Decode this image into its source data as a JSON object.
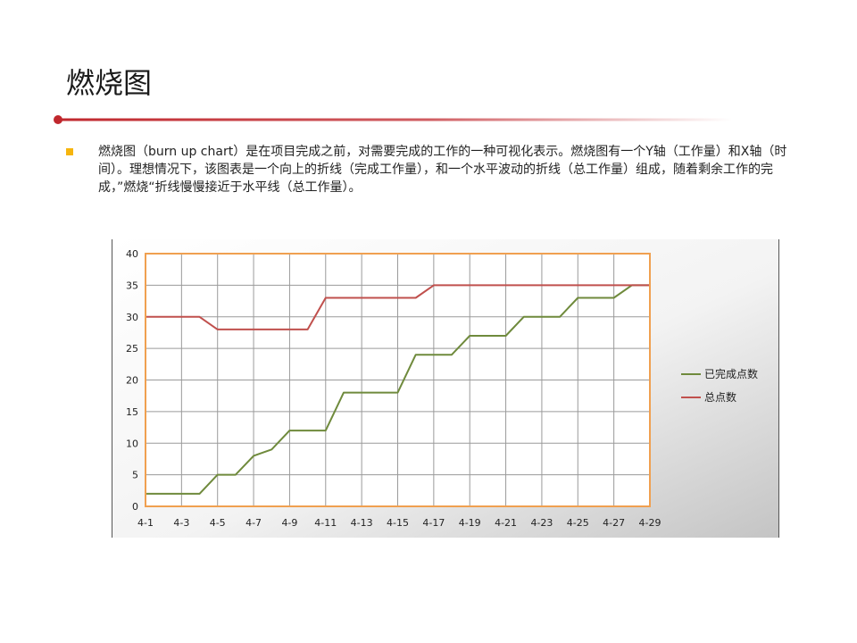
{
  "slide": {
    "title": "燃烧图",
    "bullet": "燃烧图（burn up chart）是在项目完成之前，对需要完成的工作的一种可视化表示。燃烧图有一个Y轴（工作量）和X轴（时间）。理想情况下，该图表是一个向上的折线（完成工作量），和一个水平波动的折线（总工作量）组成，随着剩余工作的完成，”燃烧“折线慢慢接近于水平线（总工作量）。"
  },
  "colors": {
    "accent_red": "#c0272d",
    "bullet_yellow": "#f6b50e",
    "plot_border": "#f0a050",
    "completed_line": "#6f8a3c",
    "total_line": "#c0504d"
  },
  "chart_data": {
    "type": "line",
    "title": "",
    "xlabel": "",
    "ylabel": "",
    "ylim": [
      0,
      40
    ],
    "yticks": [
      "0",
      "5",
      "10",
      "15",
      "20",
      "25",
      "30",
      "35",
      "40"
    ],
    "xtick_labels": [
      "4-1",
      "4-3",
      "4-5",
      "4-7",
      "4-9",
      "4-11",
      "4-13",
      "4-15",
      "4-17",
      "4-19",
      "4-21",
      "4-23",
      "4-25",
      "4-27",
      "4-29"
    ],
    "x": [
      "4-1",
      "4-2",
      "4-3",
      "4-4",
      "4-5",
      "4-6",
      "4-7",
      "4-8",
      "4-9",
      "4-10",
      "4-11",
      "4-12",
      "4-13",
      "4-14",
      "4-15",
      "4-16",
      "4-17",
      "4-18",
      "4-19",
      "4-20",
      "4-21",
      "4-22",
      "4-23",
      "4-24",
      "4-25",
      "4-26",
      "4-27",
      "4-28",
      "4-29"
    ],
    "grid": true,
    "legend_position": "right",
    "series": [
      {
        "name": "已完成点数",
        "color": "#6f8a3c",
        "values": [
          2,
          2,
          2,
          2,
          5,
          5,
          8,
          9,
          12,
          12,
          12,
          18,
          18,
          18,
          18,
          24,
          24,
          24,
          27,
          27,
          27,
          30,
          30,
          30,
          33,
          33,
          33,
          35,
          35
        ]
      },
      {
        "name": "总点数",
        "color": "#c0504d",
        "values": [
          30,
          30,
          30,
          30,
          28,
          28,
          28,
          28,
          28,
          28,
          33,
          33,
          33,
          33,
          33,
          33,
          35,
          35,
          35,
          35,
          35,
          35,
          35,
          35,
          35,
          35,
          35,
          35,
          35
        ]
      }
    ]
  }
}
